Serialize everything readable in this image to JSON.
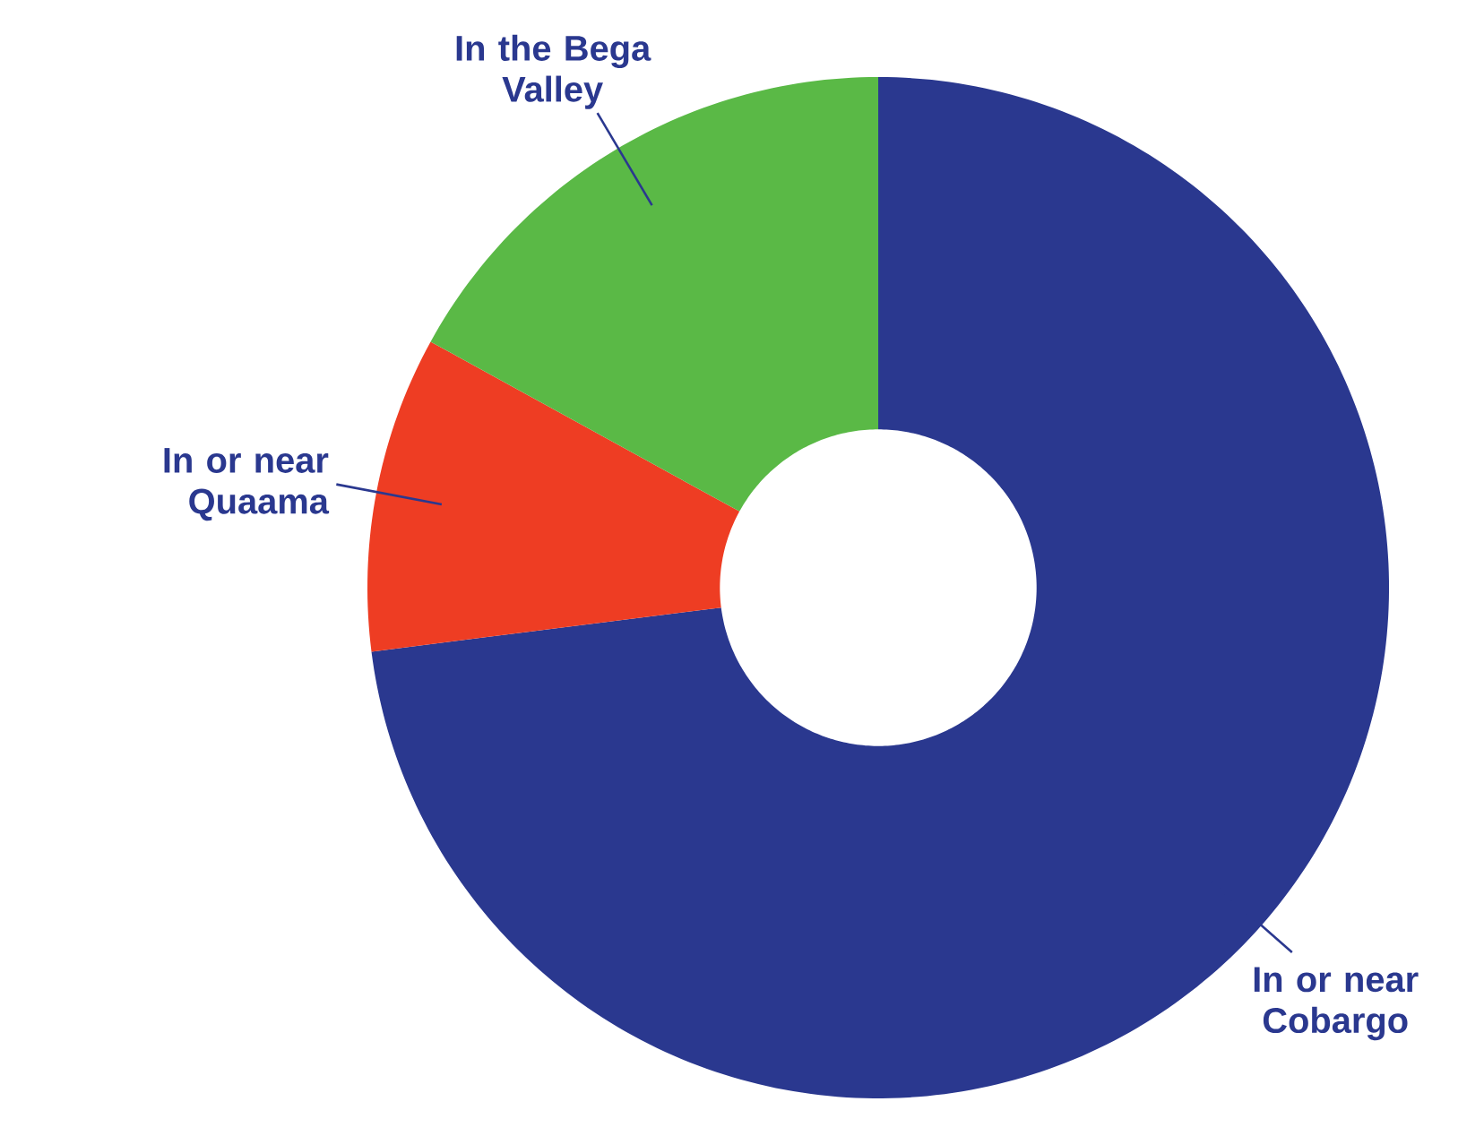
{
  "chart_data": {
    "type": "donut",
    "categories": [
      "In or near Cobargo",
      "In or near Quaama",
      "In the Bega Valley"
    ],
    "values": [
      73,
      10,
      17
    ],
    "colors": [
      "#2a388f",
      "#ee3d23",
      "#5ab946"
    ]
  }
}
